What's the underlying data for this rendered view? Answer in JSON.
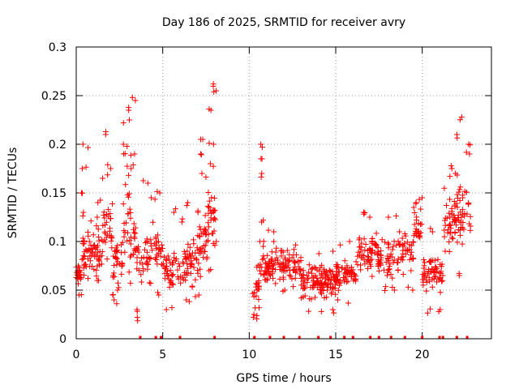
{
  "chart_data": {
    "type": "scatter",
    "title": "Day 186 of 2025, SRMTID for receiver avry",
    "xlabel": "GPS time / hours",
    "ylabel": "SRMTID / TECUs",
    "xlim": [
      0,
      24
    ],
    "ylim": [
      0,
      0.3
    ],
    "x_ticks": [
      0,
      5,
      10,
      15,
      20
    ],
    "x_tick_labels": [
      "0",
      "5",
      "10",
      "15",
      "20"
    ],
    "y_ticks": [
      0,
      0.05,
      0.1,
      0.15,
      0.2,
      0.25,
      0.3
    ],
    "y_tick_labels": [
      "0",
      "0.05",
      "0.1",
      "0.15",
      "0.2",
      "0.25",
      "0.3"
    ],
    "grid": true,
    "marker": "plus",
    "color": "#ff0000",
    "baseline_hours": [
      3.7,
      4.6,
      4.9,
      6.0,
      8.0,
      10.3,
      11.2,
      12.0,
      12.9,
      14.0,
      14.7,
      15.5,
      16.0,
      17.0,
      17.5,
      18.2,
      19.0,
      20.0,
      21.0,
      21.2,
      22.0,
      22.6
    ],
    "segments": [
      {
        "start": 0.0,
        "end": 0.3,
        "base": 0.065,
        "spread": 0.012,
        "density": 6,
        "outliers": [
          0.045,
          0.075
        ]
      },
      {
        "start": 0.3,
        "end": 0.7,
        "base": 0.09,
        "spread": 0.035,
        "density": 6,
        "outliers": [
          0.2,
          0.175,
          0.15,
          0.13
        ]
      },
      {
        "start": 0.7,
        "end": 1.5,
        "base": 0.09,
        "spread": 0.025,
        "density": 5,
        "outliers": [
          0.14,
          0.125,
          0.06
        ]
      },
      {
        "start": 1.5,
        "end": 2.1,
        "base": 0.115,
        "spread": 0.03,
        "density": 5,
        "outliers": [
          0.21,
          0.175,
          0.165
        ]
      },
      {
        "start": 2.1,
        "end": 2.7,
        "base": 0.08,
        "spread": 0.025,
        "density": 5,
        "outliers": [
          0.05,
          0.045,
          0.04
        ]
      },
      {
        "start": 2.7,
        "end": 3.1,
        "base": 0.13,
        "spread": 0.05,
        "density": 5,
        "outliers": [
          0.235,
          0.225,
          0.2,
          0.19
        ]
      },
      {
        "start": 3.1,
        "end": 3.5,
        "base": 0.1,
        "spread": 0.05,
        "density": 5,
        "outliers": [
          0.245,
          0.19,
          0.175
        ]
      },
      {
        "start": 3.5,
        "end": 4.2,
        "base": 0.08,
        "spread": 0.03,
        "density": 4,
        "outliers": [
          0.16,
          0.03,
          0.022
        ]
      },
      {
        "start": 4.2,
        "end": 5.0,
        "base": 0.09,
        "spread": 0.03,
        "density": 4,
        "outliers": [
          0.15,
          0.145,
          0.045
        ]
      },
      {
        "start": 5.0,
        "end": 6.2,
        "base": 0.07,
        "spread": 0.02,
        "density": 4,
        "outliers": [
          0.13,
          0.12,
          0.03
        ]
      },
      {
        "start": 6.2,
        "end": 7.1,
        "base": 0.08,
        "spread": 0.022,
        "density": 5,
        "outliers": [
          0.14,
          0.13,
          0.045,
          0.04
        ]
      },
      {
        "start": 7.1,
        "end": 7.6,
        "base": 0.1,
        "spread": 0.03,
        "density": 6,
        "outliers": [
          0.205,
          0.19,
          0.17
        ]
      },
      {
        "start": 7.6,
        "end": 8.1,
        "base": 0.125,
        "spread": 0.035,
        "density": 6,
        "outliers": [
          0.262,
          0.255,
          0.235,
          0.2,
          0.18,
          0.07
        ]
      },
      {
        "start": 10.2,
        "end": 10.6,
        "base": 0.05,
        "spread": 0.025,
        "density": 5,
        "outliers": [
          0.022,
          0.025
        ]
      },
      {
        "start": 10.6,
        "end": 10.85,
        "base": 0.08,
        "spread": 0.02,
        "density": 4,
        "outliers": [
          0.2,
          0.185,
          0.17,
          0.12,
          0.1
        ]
      },
      {
        "start": 10.85,
        "end": 13.0,
        "base": 0.075,
        "spread": 0.018,
        "density": 5,
        "outliers": [
          0.11,
          0.1,
          0.05
        ]
      },
      {
        "start": 13.0,
        "end": 15.0,
        "base": 0.06,
        "spread": 0.017,
        "density": 6,
        "outliers": [
          0.09,
          0.03,
          0.028
        ]
      },
      {
        "start": 15.0,
        "end": 16.2,
        "base": 0.065,
        "spread": 0.015,
        "density": 5,
        "outliers": [
          0.1,
          0.04
        ]
      },
      {
        "start": 16.2,
        "end": 17.5,
        "base": 0.09,
        "spread": 0.02,
        "density": 5,
        "outliers": [
          0.13,
          0.125
        ]
      },
      {
        "start": 17.5,
        "end": 18.5,
        "base": 0.08,
        "spread": 0.025,
        "density": 4,
        "outliers": [
          0.125,
          0.05
        ]
      },
      {
        "start": 18.5,
        "end": 19.5,
        "base": 0.085,
        "spread": 0.025,
        "density": 4,
        "outliers": [
          0.11,
          0.05
        ]
      },
      {
        "start": 19.5,
        "end": 20.0,
        "base": 0.115,
        "spread": 0.02,
        "density": 4,
        "outliers": [
          0.145,
          0.14,
          0.135
        ]
      },
      {
        "start": 20.0,
        "end": 21.2,
        "base": 0.065,
        "spread": 0.018,
        "density": 5,
        "outliers": [
          0.03,
          0.028,
          0.11
        ]
      },
      {
        "start": 21.2,
        "end": 22.0,
        "base": 0.125,
        "spread": 0.025,
        "density": 5,
        "outliers": [
          0.175,
          0.17,
          0.09
        ]
      },
      {
        "start": 22.0,
        "end": 22.8,
        "base": 0.13,
        "spread": 0.035,
        "density": 5,
        "outliers": [
          0.228,
          0.21,
          0.2,
          0.19,
          0.065
        ]
      }
    ]
  }
}
